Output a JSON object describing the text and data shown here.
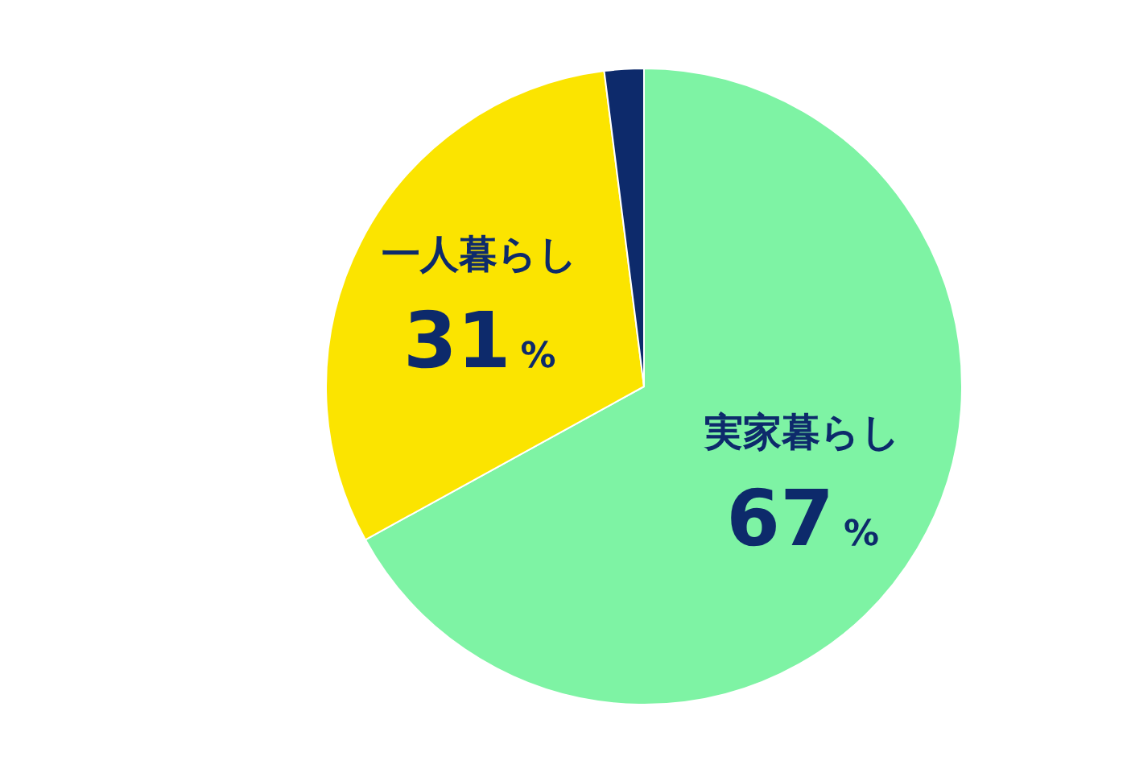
{
  "chart_data": {
    "type": "pie",
    "categories": [
      "実家暮らし",
      "一人暮らし",
      null
    ],
    "values": [
      67,
      31,
      2
    ],
    "colors": [
      "#7ef3a4",
      "#fbe400",
      "#0d2a6b"
    ],
    "value_labels": [
      "67%",
      "31%",
      null
    ],
    "legend": false
  }
}
